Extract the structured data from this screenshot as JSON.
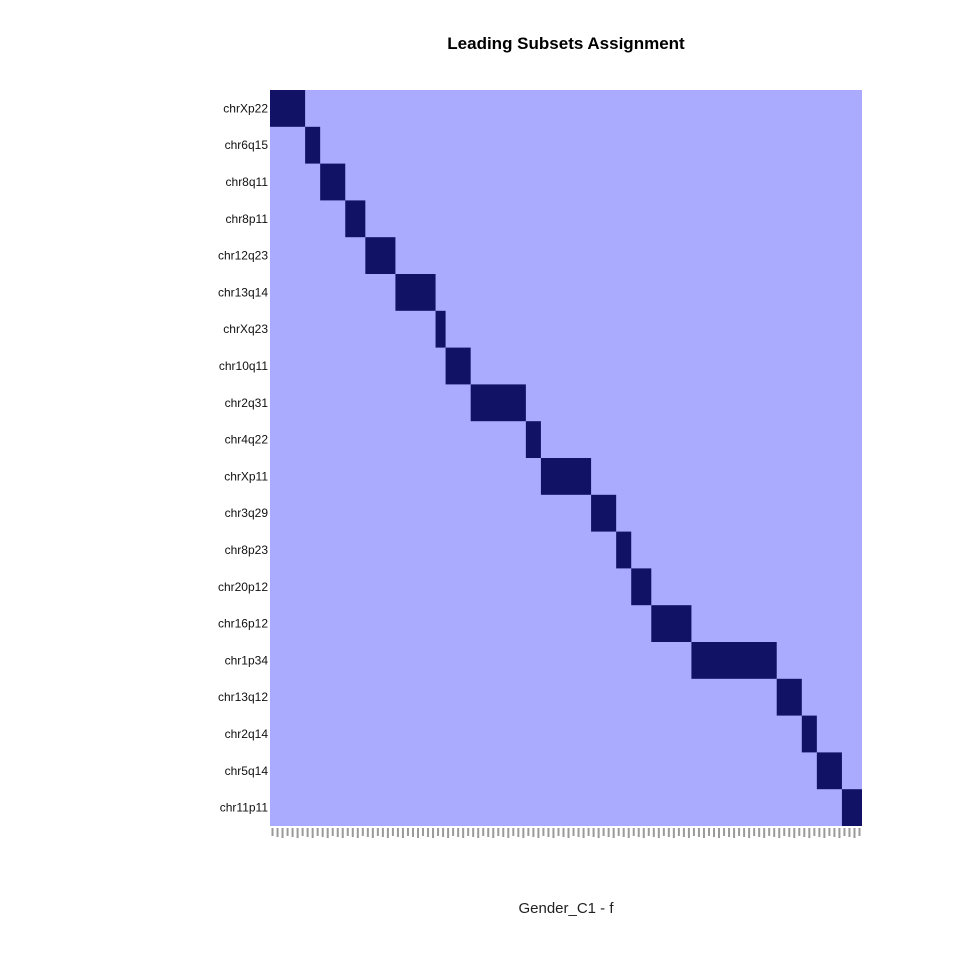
{
  "chart_data": {
    "type": "heatmap",
    "title": "Leading Subsets Assignment",
    "xlabel": "Gender_C1 - f",
    "ylabel": "",
    "colors": {
      "background": "#aaaaff",
      "member": "#111166"
    },
    "column_count": 118,
    "grid": false,
    "legend": "none",
    "rows": [
      {
        "label": "chrXp22",
        "start": 0,
        "length": 7
      },
      {
        "label": "chr6q15",
        "start": 7,
        "length": 3
      },
      {
        "label": "chr8q11",
        "start": 10,
        "length": 5
      },
      {
        "label": "chr8p11",
        "start": 15,
        "length": 4
      },
      {
        "label": "chr12q23",
        "start": 19,
        "length": 6
      },
      {
        "label": "chr13q14",
        "start": 25,
        "length": 8
      },
      {
        "label": "chrXq23",
        "start": 33,
        "length": 2
      },
      {
        "label": "chr10q11",
        "start": 35,
        "length": 5
      },
      {
        "label": "chr2q31",
        "start": 40,
        "length": 11
      },
      {
        "label": "chr4q22",
        "start": 51,
        "length": 3
      },
      {
        "label": "chrXp11",
        "start": 54,
        "length": 10
      },
      {
        "label": "chr3q29",
        "start": 64,
        "length": 5
      },
      {
        "label": "chr8p23",
        "start": 69,
        "length": 3
      },
      {
        "label": "chr20p12",
        "start": 72,
        "length": 4
      },
      {
        "label": "chr16p12",
        "start": 76,
        "length": 8
      },
      {
        "label": "chr1p34",
        "start": 84,
        "length": 17
      },
      {
        "label": "chr13q12",
        "start": 101,
        "length": 5
      },
      {
        "label": "chr2q14",
        "start": 106,
        "length": 3
      },
      {
        "label": "chr5q14",
        "start": 109,
        "length": 5
      },
      {
        "label": "chr11p11",
        "start": 114,
        "length": 4
      }
    ]
  }
}
